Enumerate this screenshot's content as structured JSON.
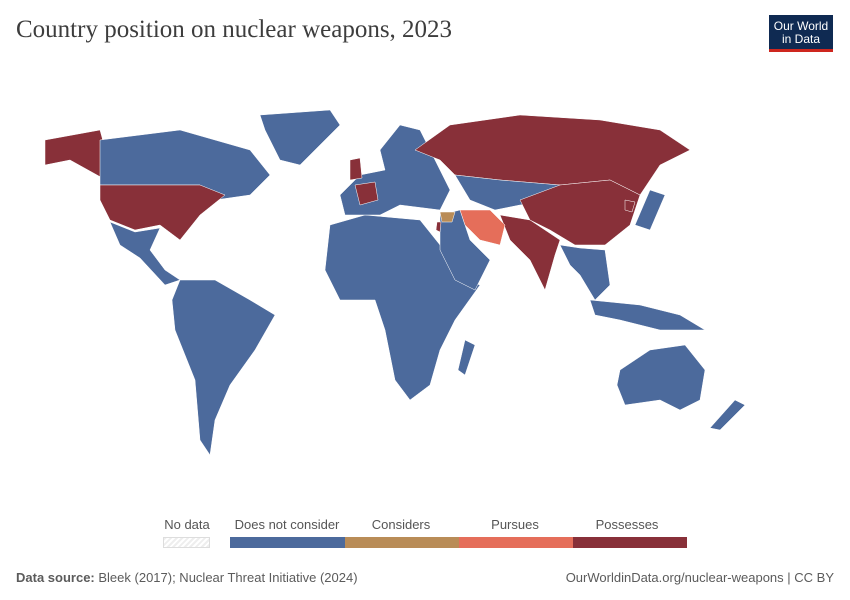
{
  "title": "Country position on nuclear weapons, 2023",
  "logo": {
    "line1": "Our World",
    "line2": "in Data"
  },
  "legend": {
    "no_data": "No data",
    "bins": [
      {
        "label": "Does not consider",
        "color": "#4c6a9c"
      },
      {
        "label": "Considers",
        "color": "#b98c57"
      },
      {
        "label": "Pursues",
        "color": "#e56e5a"
      },
      {
        "label": "Possesses",
        "color": "#883039"
      }
    ]
  },
  "footer": {
    "source_label": "Data source:",
    "source": "Bleek (2017); Nuclear Threat Initiative (2024)",
    "url": "OurWorldinData.org/nuclear-weapons | CC BY"
  }
}
